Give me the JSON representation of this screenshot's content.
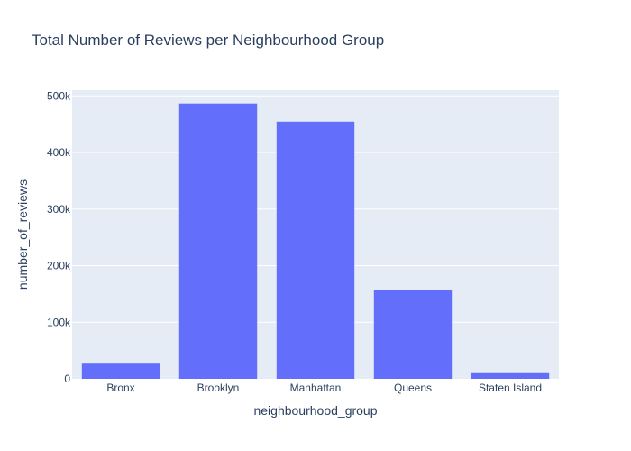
{
  "chart_data": {
    "type": "bar",
    "title": "Total Number of Reviews per Neighbourhood Group",
    "xlabel": "neighbourhood_group",
    "ylabel": "number_of_reviews",
    "categories": [
      "Bronx",
      "Brooklyn",
      "Manhattan",
      "Queens",
      "Staten Island"
    ],
    "values": [
      28371,
      486574,
      454569,
      156950,
      11541
    ],
    "ylim": [
      0,
      510000
    ],
    "yticks": [
      0,
      100000,
      200000,
      300000,
      400000,
      500000
    ],
    "ytick_labels": [
      "0",
      "100k",
      "200k",
      "300k",
      "400k",
      "500k"
    ],
    "grid": true,
    "colors": {
      "bar": "#636efa",
      "plot_bg": "#e5ecf6",
      "grid": "#ffffff",
      "text": "#2a3f5f"
    }
  }
}
